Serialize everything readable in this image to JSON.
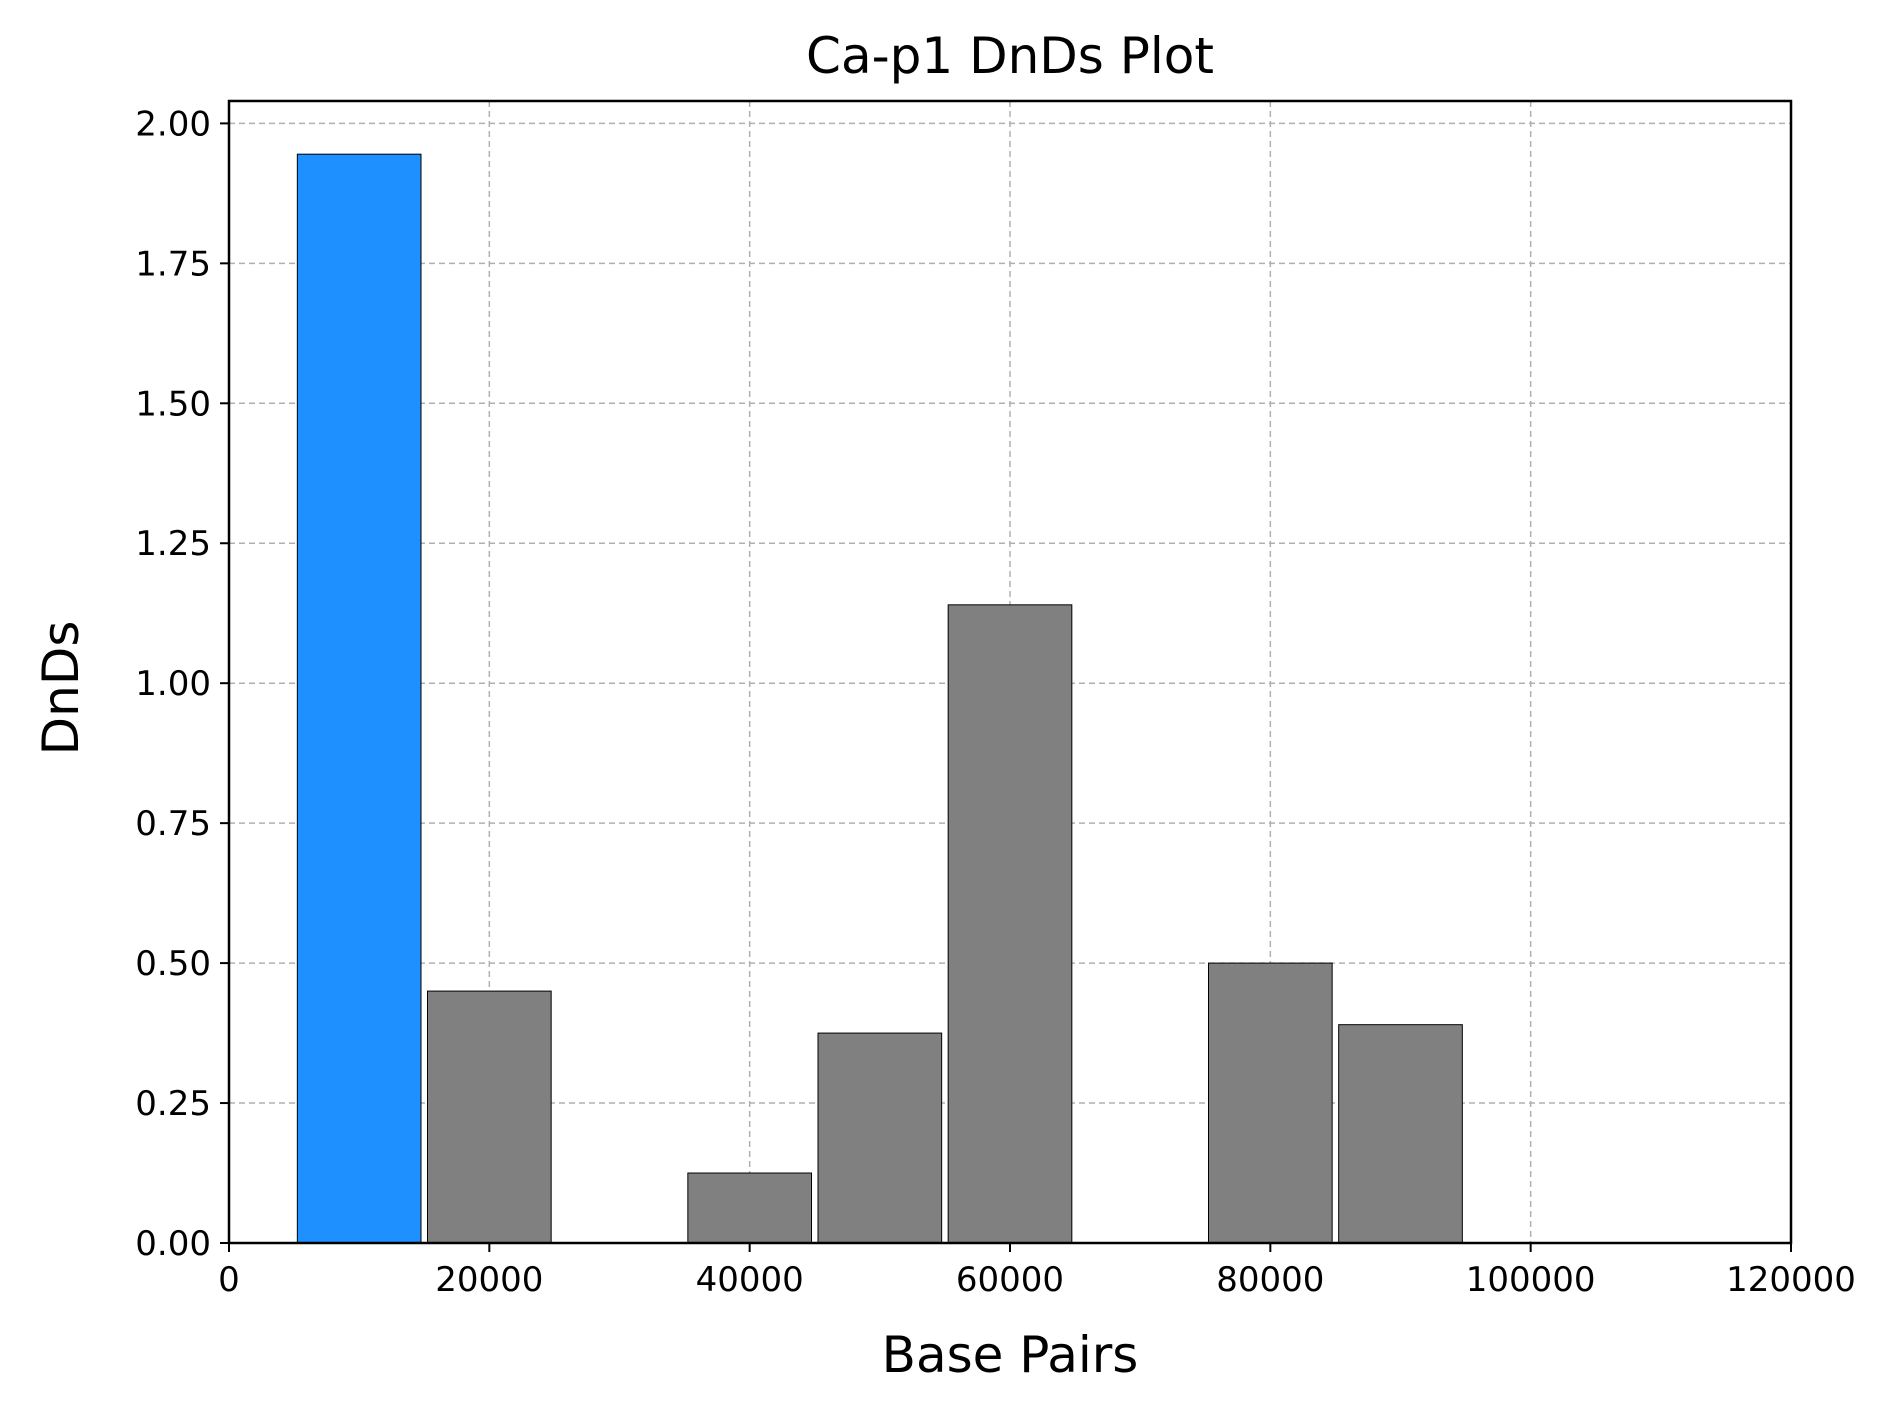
{
  "chart_data": {
    "type": "bar",
    "title": "Ca-p1 DnDs Plot",
    "xlabel": "Base Pairs",
    "ylabel": "DnDs",
    "xlim": [
      0,
      120000
    ],
    "ylim": [
      0,
      2.04
    ],
    "grid": true,
    "bar_width": 9500,
    "x_ticks": [
      0,
      20000,
      40000,
      60000,
      80000,
      100000,
      120000
    ],
    "y_ticks": [
      0.0,
      0.25,
      0.5,
      0.75,
      1.0,
      1.25,
      1.5,
      1.75,
      2.0
    ],
    "y_tick_labels": [
      "0.00",
      "0.25",
      "0.50",
      "0.75",
      "1.00",
      "1.25",
      "1.50",
      "1.75",
      "2.00"
    ],
    "highlight_color": "#1e90ff",
    "default_color": "#808080",
    "bars": [
      {
        "x": 10000,
        "value": 1.945,
        "highlight": true
      },
      {
        "x": 20000,
        "value": 0.45,
        "highlight": false
      },
      {
        "x": 40000,
        "value": 0.125,
        "highlight": false
      },
      {
        "x": 50000,
        "value": 0.375,
        "highlight": false
      },
      {
        "x": 60000,
        "value": 1.14,
        "highlight": false
      },
      {
        "x": 80000,
        "value": 0.5,
        "highlight": false
      },
      {
        "x": 90000,
        "value": 0.39,
        "highlight": false
      }
    ]
  }
}
